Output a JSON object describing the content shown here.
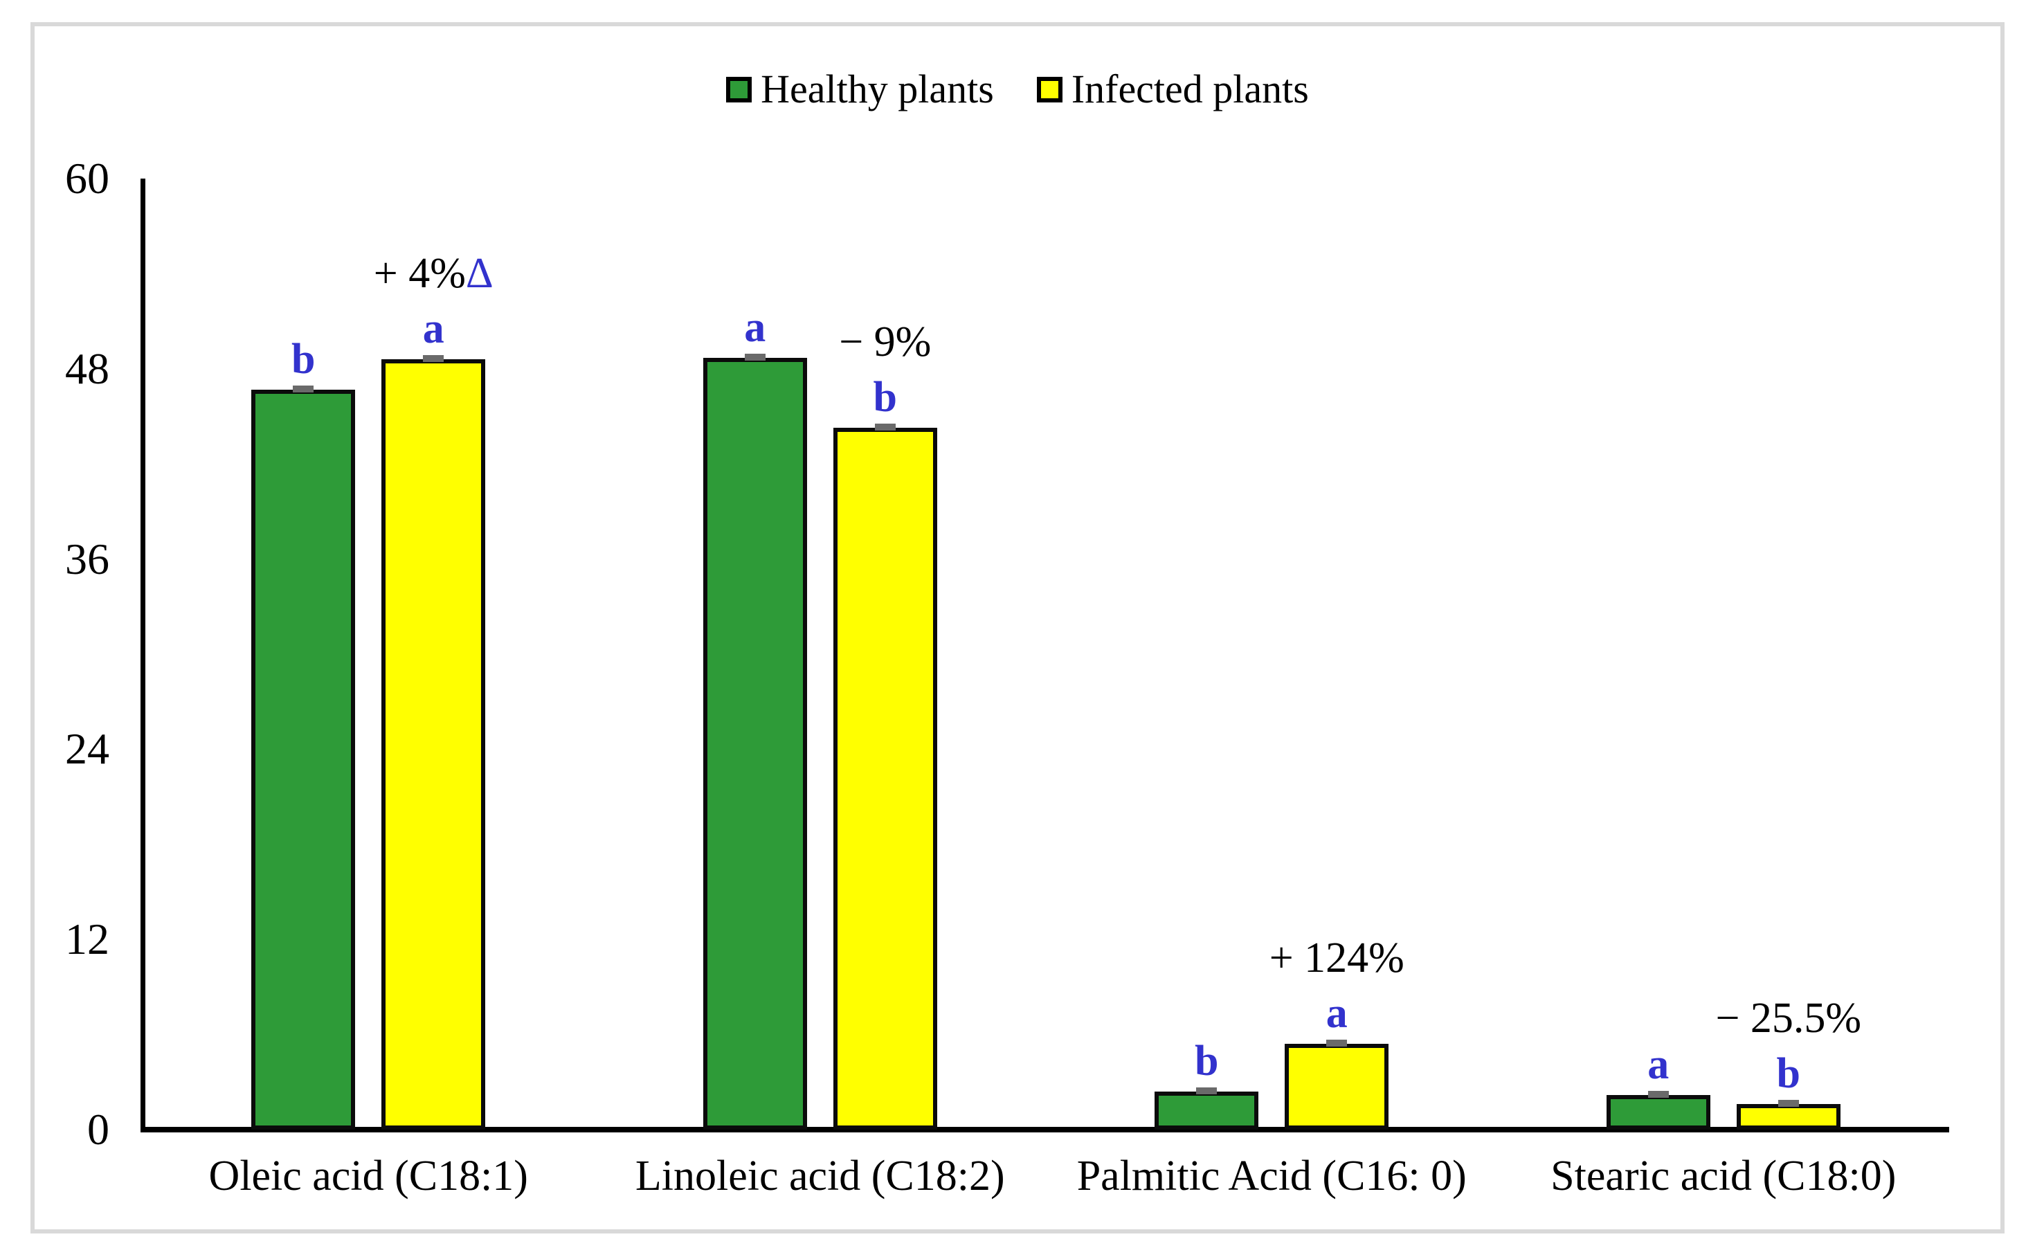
{
  "chart_data": {
    "type": "bar",
    "title": "",
    "xlabel": "",
    "ylabel": "",
    "categories": [
      "Oleic acid (C18:1)",
      "Linoleic acid (C18:2)",
      "Palmitic Acid (C16: 0)",
      "Stearic acid (C18:0)"
    ],
    "series": [
      {
        "name": "Healthy plants",
        "color": "#2e9b38",
        "values": [
          46.7,
          48.7,
          2.4,
          2.2
        ],
        "letters": [
          "b",
          "a",
          "b",
          "a"
        ]
      },
      {
        "name": "Infected plants",
        "color": "#ffff00",
        "values": [
          48.6,
          44.3,
          5.4,
          1.6
        ],
        "letters": [
          "a",
          "b",
          "a",
          "b"
        ]
      }
    ],
    "annotations": [
      {
        "text": "+ 4%",
        "suffix": "Δ"
      },
      {
        "text": "− 9%",
        "suffix": ""
      },
      {
        "text": "+ 124%",
        "suffix": ""
      },
      {
        "text": "− 25.5%",
        "suffix": ""
      }
    ],
    "y_axis": {
      "min": 0,
      "max": 60,
      "ticks": [
        0,
        12,
        24,
        36,
        48,
        60
      ]
    },
    "ylim": [
      0,
      60
    ],
    "grid": false,
    "legend_position": "top",
    "error_bars": true,
    "colors": {
      "letter": "#3232cd",
      "delta_symbol": "#3232cd",
      "error_bar": "#6a6a6a",
      "axis": "#000000",
      "annotation_text": "#000000",
      "frame": "#d9d9d9",
      "background": "#ffffff"
    }
  }
}
